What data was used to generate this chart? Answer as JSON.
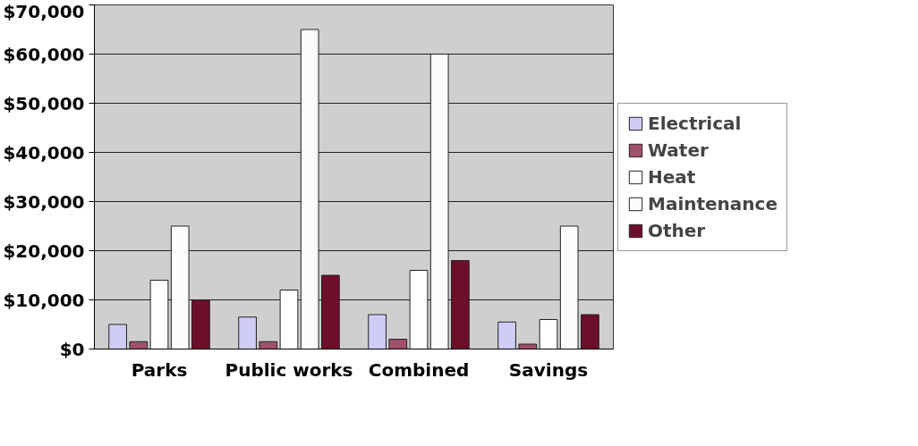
{
  "chart_data": {
    "type": "bar",
    "categories": [
      "Parks",
      "Public works",
      "Combined",
      "Savings"
    ],
    "series": [
      {
        "name": "Electrical",
        "color": "#ccccf5",
        "values": [
          5000,
          6500,
          7000,
          5500
        ]
      },
      {
        "name": "Water",
        "color": "#a0506a",
        "values": [
          1500,
          1500,
          2000,
          1000
        ]
      },
      {
        "name": "Heat",
        "color": "#ffffff",
        "values": [
          14000,
          12000,
          16000,
          6000
        ]
      },
      {
        "name": "Maintenance",
        "color": "#fcfcfc",
        "values": [
          25000,
          65000,
          60000,
          25000
        ]
      },
      {
        "name": "Other",
        "color": "#6e0f2a",
        "values": [
          10000,
          15000,
          18000,
          7000
        ]
      }
    ],
    "ylim": [
      0,
      70000
    ],
    "yticks": [
      {
        "value": 0,
        "label": "$0"
      },
      {
        "value": 10000,
        "label": "$10,000"
      },
      {
        "value": 20000,
        "label": "$20,000"
      },
      {
        "value": 30000,
        "label": "$30,000"
      },
      {
        "value": 40000,
        "label": "$40,000"
      },
      {
        "value": 50000,
        "label": "$50,000"
      },
      {
        "value": 60000,
        "label": "$60,000"
      },
      {
        "value": 70000,
        "label": "$70,000"
      }
    ],
    "grid": "y",
    "legend": "right"
  }
}
